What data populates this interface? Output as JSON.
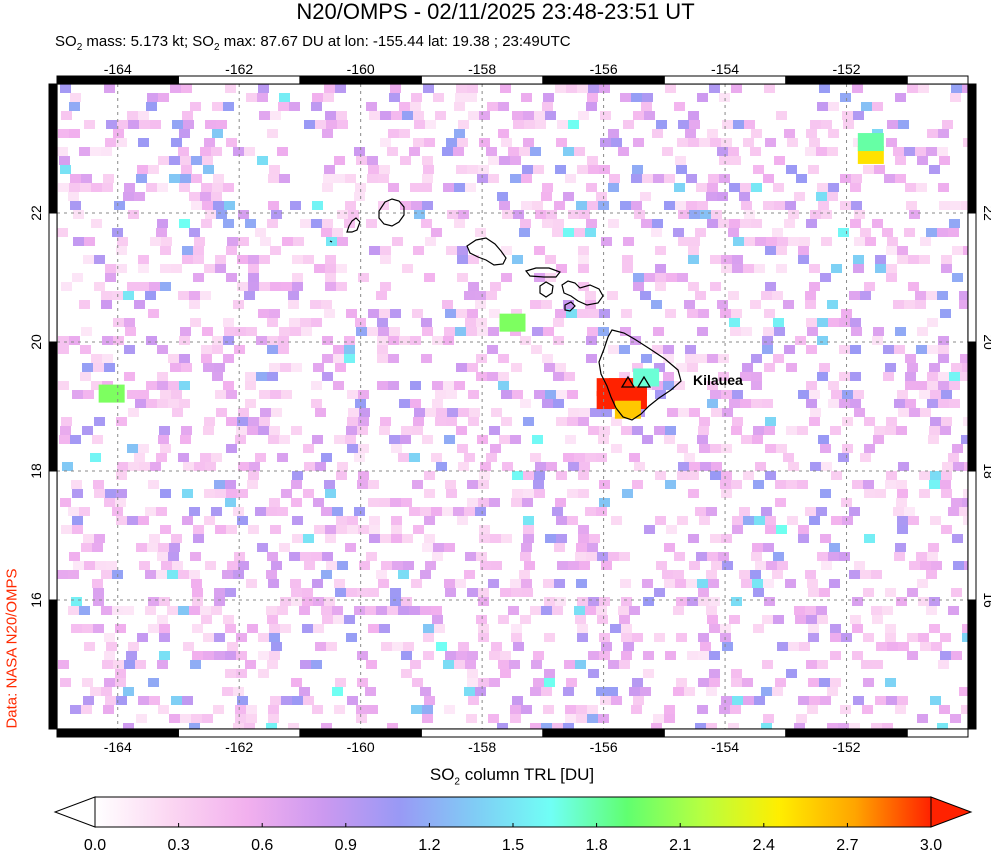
{
  "header": {
    "title": "N20/OMPS - 02/11/2025 23:48-23:51 UT",
    "so2_mass_value": " mass: 5.173 kt; SO",
    "so2_max_value": " max: 87.67 DU at lon: -155.44 lat: 19.38 ; 23:49UTC",
    "so2_prefix": "SO",
    "sub2": "2"
  },
  "credit": "Data: NASA N20/OMPS",
  "map": {
    "volcano_label": "Kilauea",
    "xticks": [
      "-164",
      "-162",
      "-160",
      "-158",
      "-156",
      "-154",
      "-152"
    ],
    "yticks": [
      "16",
      "18",
      "20",
      "22"
    ],
    "xlim": [
      -165.0,
      -150.0
    ],
    "ylim": [
      14.0,
      24.0
    ]
  },
  "colorbar": {
    "label_prefix": "SO",
    "label_sub": "2",
    "label_suffix": " column TRL [DU]",
    "ticks": [
      "0.0",
      "0.3",
      "0.6",
      "0.9",
      "1.2",
      "1.5",
      "1.8",
      "2.1",
      "2.4",
      "2.7",
      "3.0"
    ],
    "colors": [
      "#ffffff",
      "#fbd6f2",
      "#f2b0ee",
      "#cc99f0",
      "#9999f5",
      "#80ccf5",
      "#70fff5",
      "#60ff70",
      "#b8ff40",
      "#ffee00",
      "#ffa500",
      "#ff2200"
    ]
  },
  "chart_data": {
    "type": "heatmap",
    "title": "N20/OMPS - 02/11/2025 23:48-23:51 UT",
    "subtitle": "SO2 mass: 5.173 kt; SO2 max: 87.67 DU at lon: -155.44 lat: 19.38 ; 23:49UTC",
    "xlim": [
      -165.0,
      -150.0
    ],
    "ylim": [
      14.0,
      24.0
    ],
    "x_ticks": [
      -164,
      -162,
      -160,
      -158,
      -156,
      -154,
      -152
    ],
    "y_ticks": [
      16,
      18,
      20,
      22
    ],
    "colorbar_range": [
      0.0,
      3.0
    ],
    "colorbar_label": "SO2 column TRL [DU]",
    "grid": true,
    "volcano": {
      "name": "Kilauea",
      "lon": -155.3,
      "lat": 19.4
    },
    "plume_cells": [
      {
        "lon": -155.9,
        "lat": 19.3,
        "du": 3.0
      },
      {
        "lon": -155.7,
        "lat": 19.3,
        "du": 3.0
      },
      {
        "lon": -155.5,
        "lat": 19.3,
        "du": 3.0
      },
      {
        "lon": -155.9,
        "lat": 19.1,
        "du": 3.0
      },
      {
        "lon": -155.7,
        "lat": 19.1,
        "du": 3.0
      },
      {
        "lon": -155.5,
        "lat": 19.1,
        "du": 3.0
      },
      {
        "lon": -155.6,
        "lat": 18.95,
        "du": 2.6
      },
      {
        "lon": -151.6,
        "lat": 22.9,
        "du": 2.5
      },
      {
        "lon": -151.6,
        "lat": 23.1,
        "du": 1.8
      },
      {
        "lon": -157.5,
        "lat": 20.3,
        "du": 2.0
      },
      {
        "lon": -164.1,
        "lat": 19.2,
        "du": 2.0
      },
      {
        "lon": -155.3,
        "lat": 19.45,
        "du": 1.7
      }
    ]
  }
}
